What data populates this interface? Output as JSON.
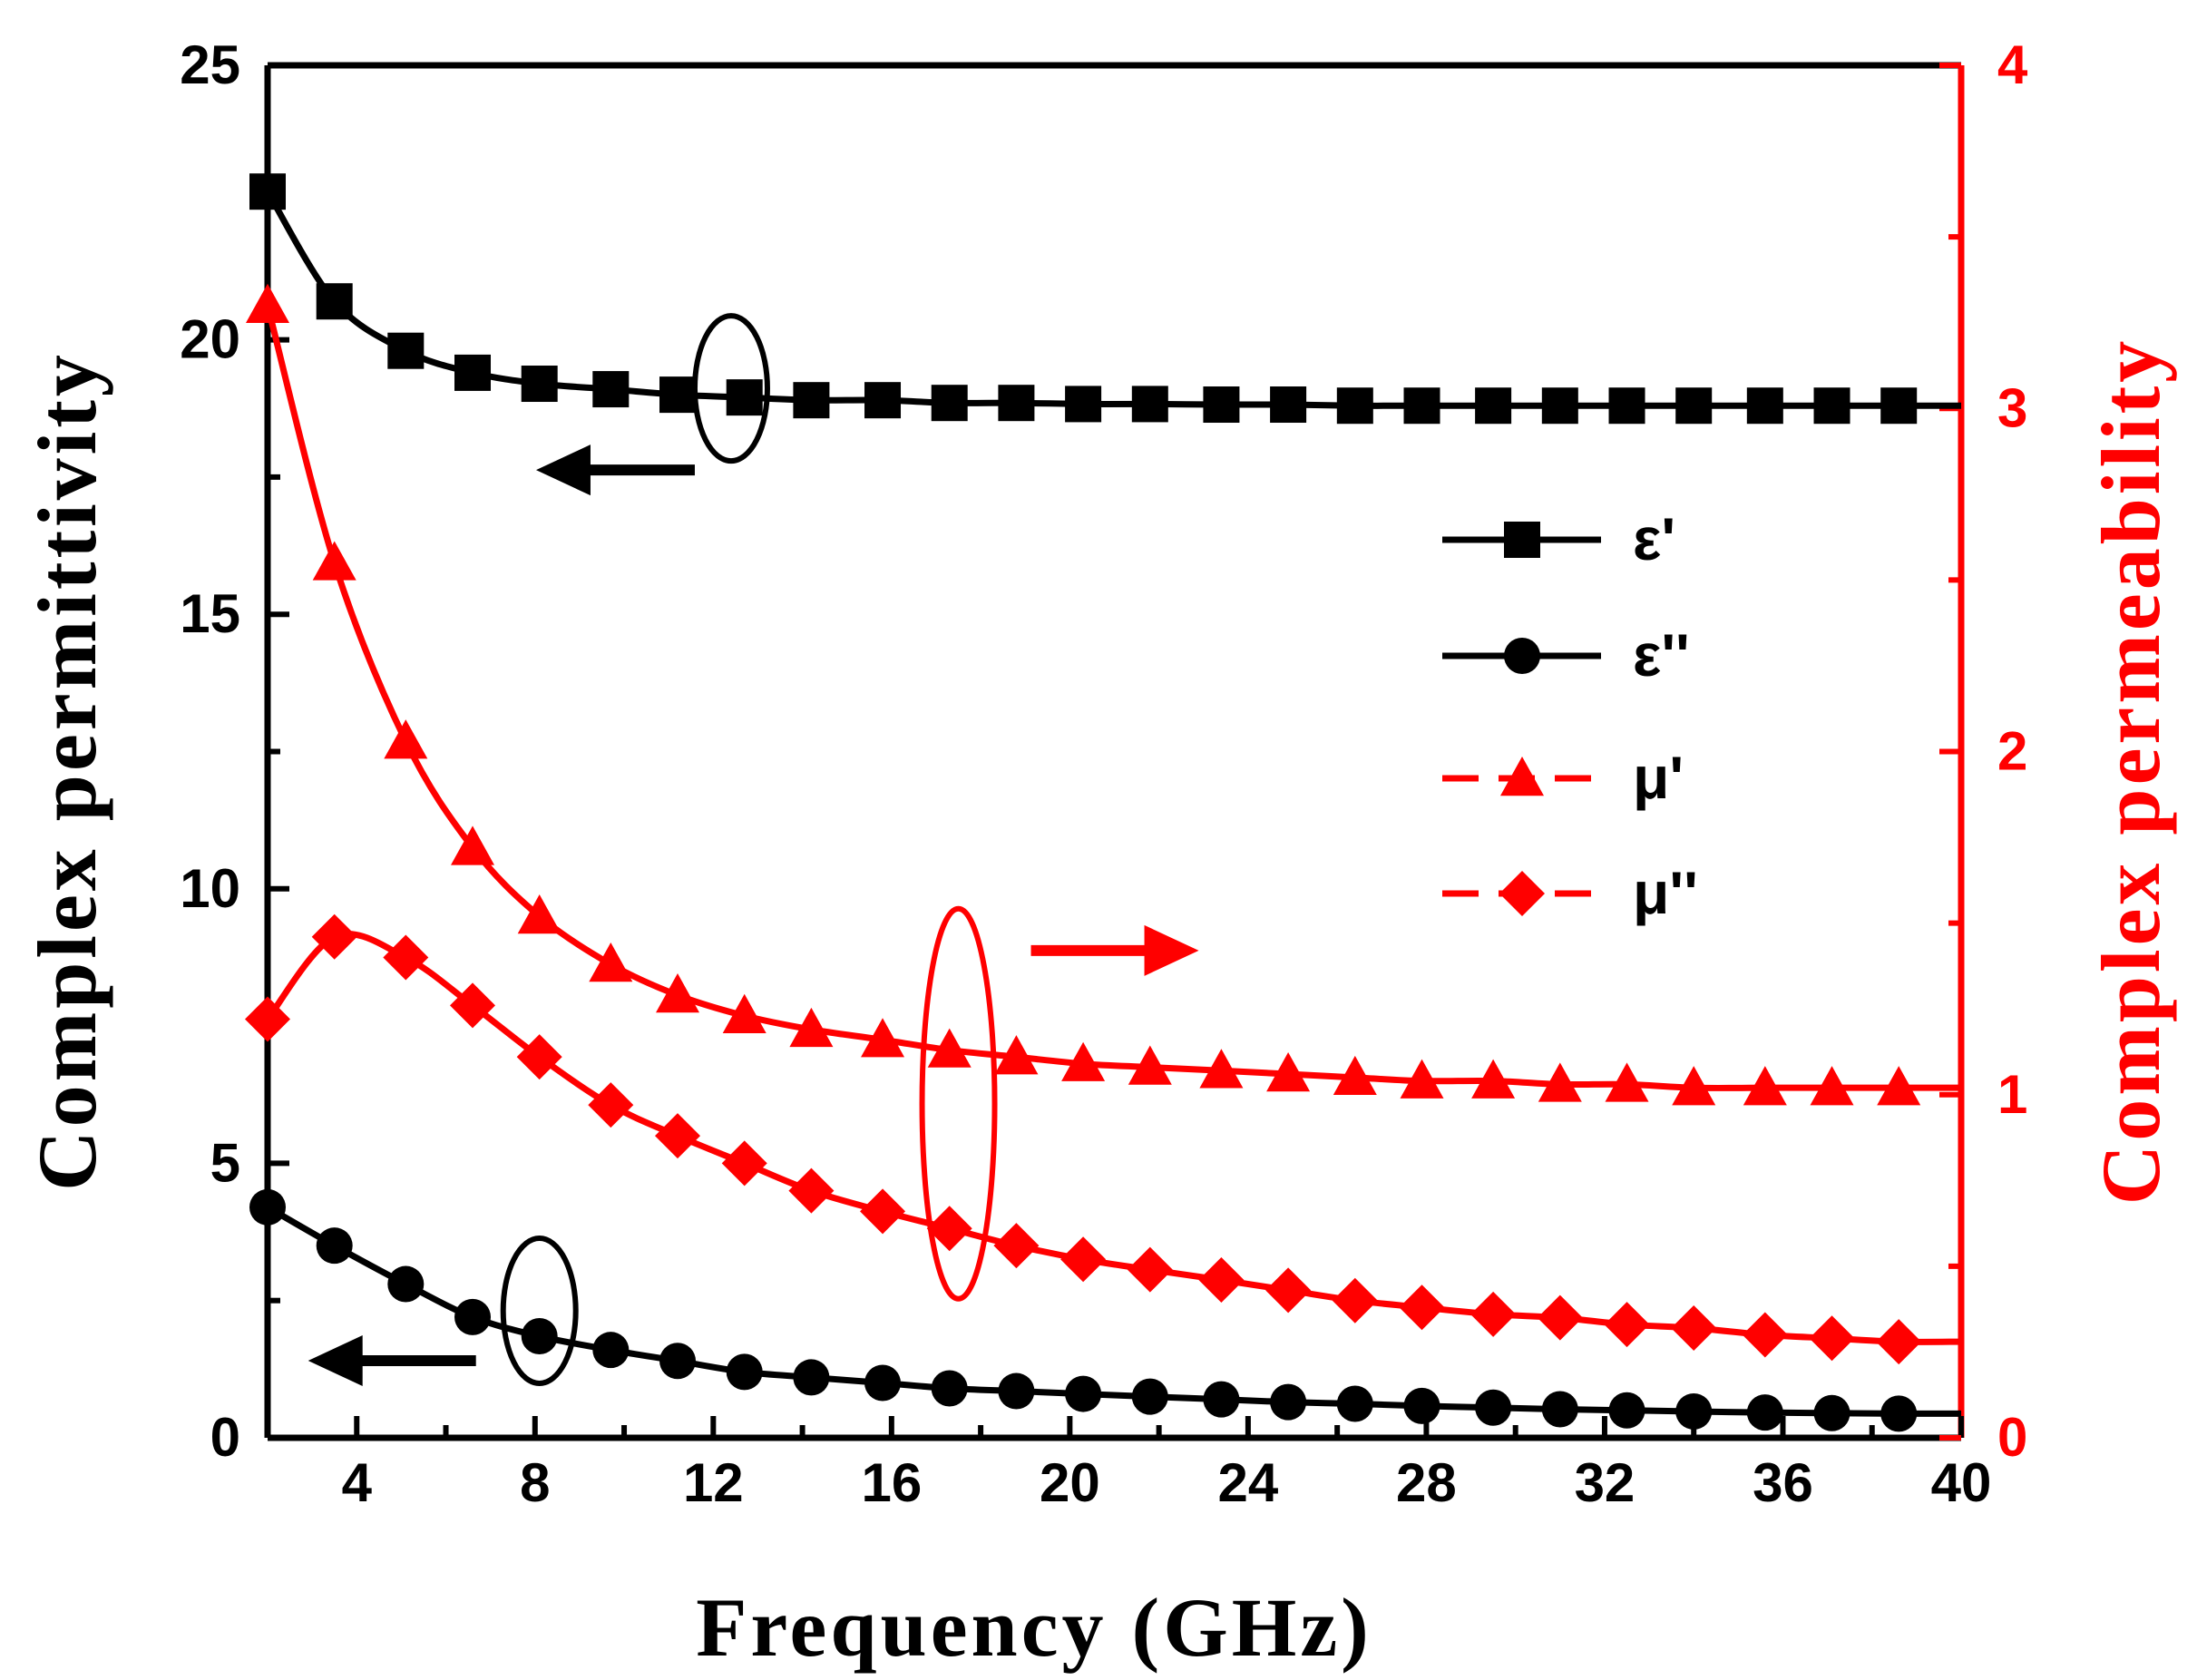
{
  "chart_data": {
    "type": "line",
    "xlabel": "Frequency (GHz)",
    "ylabel_left": "Complex permittivity",
    "ylabel_right": "Complex permeability",
    "xlim": [
      2,
      40
    ],
    "ylim_left": [
      0,
      25
    ],
    "ylim_right": [
      0,
      4
    ],
    "x_ticks": [
      4,
      8,
      12,
      16,
      20,
      24,
      28,
      32,
      36,
      40
    ],
    "y_left_ticks": [
      0,
      5,
      10,
      15,
      20,
      25
    ],
    "y_right_ticks": [
      0,
      1,
      2,
      3,
      4
    ],
    "grid": false,
    "legend_position": "right",
    "x": [
      2.0,
      3.5,
      5.1,
      6.6,
      8.1,
      9.7,
      11.2,
      12.7,
      14.2,
      15.8,
      17.3,
      18.8,
      20.3,
      21.8,
      23.4,
      24.9,
      26.4,
      27.9,
      29.5,
      31.0,
      32.5,
      34.0,
      35.6,
      37.1,
      38.6
    ],
    "series": [
      {
        "name": "ε'",
        "axis": "left",
        "color": "#000000",
        "marker": "square",
        "dashed": false,
        "values": [
          22.7,
          20.7,
          19.8,
          19.4,
          19.2,
          19.1,
          19.0,
          18.95,
          18.9,
          18.9,
          18.85,
          18.85,
          18.83,
          18.83,
          18.82,
          18.82,
          18.8,
          18.8,
          18.8,
          18.8,
          18.8,
          18.8,
          18.8,
          18.8,
          18.8
        ]
      },
      {
        "name": "ε''",
        "axis": "left",
        "color": "#000000",
        "marker": "circle",
        "dashed": false,
        "values": [
          4.2,
          3.5,
          2.8,
          2.2,
          1.85,
          1.6,
          1.4,
          1.2,
          1.1,
          1.0,
          0.9,
          0.85,
          0.8,
          0.75,
          0.7,
          0.65,
          0.62,
          0.58,
          0.55,
          0.52,
          0.5,
          0.48,
          0.46,
          0.45,
          0.44
        ]
      },
      {
        "name": "μ'",
        "axis": "right",
        "color": "#ff0000",
        "marker": "triangle",
        "dashed": true,
        "values": [
          3.3,
          2.55,
          2.03,
          1.72,
          1.52,
          1.38,
          1.29,
          1.23,
          1.19,
          1.16,
          1.13,
          1.11,
          1.09,
          1.08,
          1.07,
          1.06,
          1.05,
          1.04,
          1.04,
          1.03,
          1.03,
          1.02,
          1.02,
          1.02,
          1.02
        ]
      },
      {
        "name": "μ''",
        "axis": "right",
        "color": "#ff0000",
        "marker": "diamond",
        "dashed": true,
        "values": [
          1.22,
          1.46,
          1.4,
          1.26,
          1.11,
          0.97,
          0.88,
          0.8,
          0.72,
          0.66,
          0.61,
          0.56,
          0.52,
          0.49,
          0.46,
          0.43,
          0.4,
          0.38,
          0.36,
          0.35,
          0.33,
          0.32,
          0.3,
          0.29,
          0.28
        ]
      }
    ],
    "annotations": [
      {
        "type": "ellipse-arrow",
        "axis": "left",
        "target": "ε'",
        "x": 12.4,
        "y": 18.95,
        "arrow": "left"
      },
      {
        "type": "ellipse-arrow",
        "axis": "left",
        "target": "ε''",
        "x": 8.1,
        "y": 1.9,
        "arrow": "left"
      },
      {
        "type": "ellipse-arrow",
        "axis": "right",
        "target": "μ'/μ''",
        "x": 17.5,
        "y": 1.0,
        "arrow": "right"
      }
    ]
  },
  "colors": {
    "left_axis": "#000000",
    "right_axis": "#ff0000"
  }
}
